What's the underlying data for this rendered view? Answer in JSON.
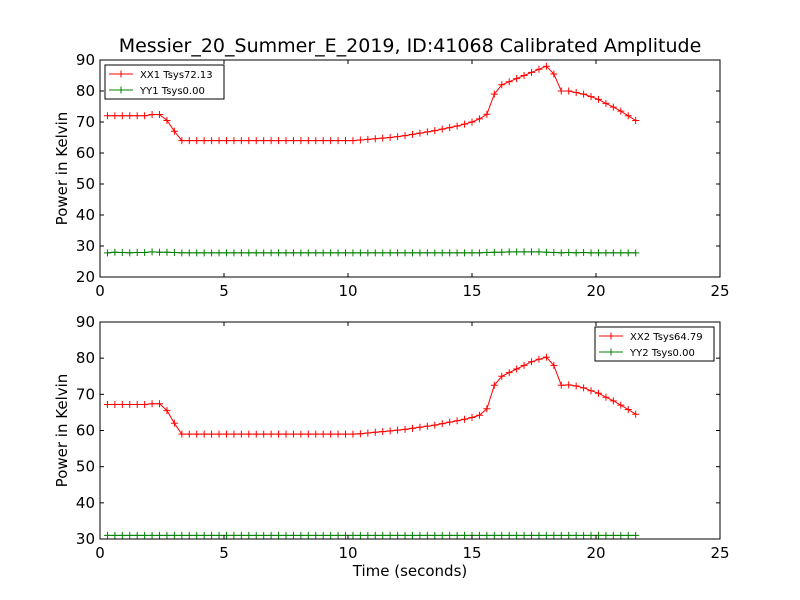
{
  "figure": {
    "title": "Messier_20_Summer_E_2019, ID:41068 Calibrated Amplitude"
  },
  "chart_data": [
    {
      "type": "line",
      "title": "Messier_20_Summer_E_2019, ID:41068 Calibrated Amplitude",
      "xlabel": "",
      "ylabel": "Power in Kelvin",
      "xlim": [
        0,
        25
      ],
      "ylim": [
        20,
        90
      ],
      "xticks": [
        "0",
        "5",
        "10",
        "15",
        "20",
        "25"
      ],
      "yticks": [
        "20",
        "30",
        "40",
        "50",
        "60",
        "70",
        "80",
        "90"
      ],
      "grid": false,
      "legend_position": "top-left",
      "series": [
        {
          "name": "XX1 Tsys72.13",
          "color": "#ff0000",
          "marker": "plus",
          "x": [
            0.3,
            0.6,
            0.9,
            1.2,
            1.5,
            1.8,
            2.1,
            2.4,
            2.7,
            3.0,
            3.3,
            3.6,
            3.9,
            4.2,
            4.5,
            4.8,
            5.1,
            5.4,
            5.7,
            6.0,
            6.3,
            6.6,
            6.9,
            7.2,
            7.5,
            7.8,
            8.1,
            8.4,
            8.7,
            9.0,
            9.3,
            9.6,
            9.9,
            10.2,
            10.5,
            10.8,
            11.1,
            11.4,
            11.7,
            12.0,
            12.3,
            12.6,
            12.9,
            13.2,
            13.5,
            13.8,
            14.1,
            14.4,
            14.7,
            15.0,
            15.3,
            15.6,
            15.9,
            16.2,
            16.5,
            16.8,
            17.1,
            17.4,
            17.7,
            18.0,
            18.3,
            18.6,
            18.9,
            19.2,
            19.5,
            19.8,
            20.1,
            20.4,
            20.7,
            21.0,
            21.3,
            21.6
          ],
          "y": [
            72,
            72,
            72,
            72,
            72,
            72,
            72.4,
            72.4,
            70.5,
            67,
            64,
            64,
            64,
            64,
            64,
            64,
            64,
            64,
            64,
            64,
            64,
            64,
            64,
            64,
            64,
            64,
            64,
            64,
            64,
            64,
            64,
            64,
            64,
            64,
            64.2,
            64.4,
            64.6,
            64.8,
            65,
            65.3,
            65.6,
            66,
            66.4,
            66.8,
            67.2,
            67.7,
            68.2,
            68.7,
            69.3,
            70,
            71,
            72.5,
            79,
            82,
            83,
            84,
            85,
            86,
            87,
            88,
            85.5,
            80,
            80,
            79.5,
            79,
            78.2,
            77.3,
            76,
            74.8,
            73.5,
            72,
            70.5
          ]
        },
        {
          "name": "YY1 Tsys0.00",
          "color": "#008000",
          "marker": "plus",
          "x": [
            0.3,
            0.6,
            0.9,
            1.2,
            1.5,
            1.8,
            2.1,
            2.4,
            2.7,
            3.0,
            3.3,
            3.6,
            3.9,
            4.2,
            4.5,
            4.8,
            5.1,
            5.4,
            5.7,
            6.0,
            6.3,
            6.6,
            6.9,
            7.2,
            7.5,
            7.8,
            8.1,
            8.4,
            8.7,
            9.0,
            9.3,
            9.6,
            9.9,
            10.2,
            10.5,
            10.8,
            11.1,
            11.4,
            11.7,
            12.0,
            12.3,
            12.6,
            12.9,
            13.2,
            13.5,
            13.8,
            14.1,
            14.4,
            14.7,
            15.0,
            15.3,
            15.6,
            15.9,
            16.2,
            16.5,
            16.8,
            17.1,
            17.4,
            17.7,
            18.0,
            18.3,
            18.6,
            18.9,
            19.2,
            19.5,
            19.8,
            20.1,
            20.4,
            20.7,
            21.0,
            21.3,
            21.6
          ],
          "y": [
            27.8,
            28,
            27.9,
            27.8,
            27.9,
            27.9,
            28.1,
            28,
            28,
            27.9,
            27.8,
            27.8,
            27.8,
            27.8,
            27.8,
            27.8,
            27.8,
            27.8,
            27.8,
            27.8,
            27.8,
            27.8,
            27.8,
            27.8,
            27.8,
            27.8,
            27.8,
            27.8,
            27.8,
            27.8,
            27.8,
            27.8,
            27.8,
            27.8,
            27.8,
            27.8,
            27.8,
            27.8,
            27.8,
            27.8,
            27.8,
            27.8,
            27.8,
            27.8,
            27.8,
            27.8,
            27.8,
            27.8,
            27.8,
            27.8,
            27.8,
            27.9,
            28,
            28,
            28.1,
            28.1,
            28.1,
            28.1,
            28.1,
            28,
            27.9,
            27.8,
            27.9,
            27.8,
            27.9,
            27.8,
            27.8,
            27.8,
            27.8,
            27.8,
            27.8,
            27.8
          ]
        }
      ]
    },
    {
      "type": "line",
      "title": "",
      "xlabel": "Time (seconds)",
      "ylabel": "Power in Kelvin",
      "xlim": [
        0,
        25
      ],
      "ylim": [
        30,
        90
      ],
      "xticks": [
        "0",
        "5",
        "10",
        "15",
        "20",
        "25"
      ],
      "yticks": [
        "30",
        "40",
        "50",
        "60",
        "70",
        "80",
        "90"
      ],
      "grid": false,
      "legend_position": "top-right",
      "series": [
        {
          "name": "XX2 Tsys64.79",
          "color": "#ff0000",
          "marker": "plus",
          "x": [
            0.3,
            0.6,
            0.9,
            1.2,
            1.5,
            1.8,
            2.1,
            2.4,
            2.7,
            3.0,
            3.3,
            3.6,
            3.9,
            4.2,
            4.5,
            4.8,
            5.1,
            5.4,
            5.7,
            6.0,
            6.3,
            6.6,
            6.9,
            7.2,
            7.5,
            7.8,
            8.1,
            8.4,
            8.7,
            9.0,
            9.3,
            9.6,
            9.9,
            10.2,
            10.5,
            10.8,
            11.1,
            11.4,
            11.7,
            12.0,
            12.3,
            12.6,
            12.9,
            13.2,
            13.5,
            13.8,
            14.1,
            14.4,
            14.7,
            15.0,
            15.3,
            15.6,
            15.9,
            16.2,
            16.5,
            16.8,
            17.1,
            17.4,
            17.7,
            18.0,
            18.3,
            18.6,
            18.9,
            19.2,
            19.5,
            19.8,
            20.1,
            20.4,
            20.7,
            21.0,
            21.3,
            21.6
          ],
          "y": [
            67.2,
            67.2,
            67.2,
            67.2,
            67.2,
            67.2,
            67.4,
            67.4,
            65.5,
            62,
            59,
            59,
            59,
            59,
            59,
            59,
            59,
            59,
            59,
            59,
            59,
            59,
            59,
            59,
            59,
            59,
            59,
            59,
            59,
            59,
            59,
            59,
            59,
            59,
            59.1,
            59.3,
            59.5,
            59.7,
            59.9,
            60.1,
            60.3,
            60.6,
            60.9,
            61.2,
            61.5,
            61.9,
            62.3,
            62.7,
            63.1,
            63.6,
            64.2,
            66,
            72.5,
            75,
            76,
            77,
            78,
            79,
            79.7,
            80.3,
            78,
            72.5,
            72.6,
            72.3,
            71.8,
            71,
            70.3,
            69.2,
            68.2,
            67,
            65.8,
            64.5
          ]
        },
        {
          "name": "YY2 Tsys0.00",
          "color": "#008000",
          "marker": "plus",
          "x": [
            0.3,
            0.6,
            0.9,
            1.2,
            1.5,
            1.8,
            2.1,
            2.4,
            2.7,
            3.0,
            3.3,
            3.6,
            3.9,
            4.2,
            4.5,
            4.8,
            5.1,
            5.4,
            5.7,
            6.0,
            6.3,
            6.6,
            6.9,
            7.2,
            7.5,
            7.8,
            8.1,
            8.4,
            8.7,
            9.0,
            9.3,
            9.6,
            9.9,
            10.2,
            10.5,
            10.8,
            11.1,
            11.4,
            11.7,
            12.0,
            12.3,
            12.6,
            12.9,
            13.2,
            13.5,
            13.8,
            14.1,
            14.4,
            14.7,
            15.0,
            15.3,
            15.6,
            15.9,
            16.2,
            16.5,
            16.8,
            17.1,
            17.4,
            17.7,
            18.0,
            18.3,
            18.6,
            18.9,
            19.2,
            19.5,
            19.8,
            20.1,
            20.4,
            20.7,
            21.0,
            21.3,
            21.6
          ],
          "y": [
            31,
            31,
            31,
            31,
            31,
            31,
            31,
            31,
            31,
            31,
            31,
            31,
            31,
            31,
            31,
            31,
            31,
            31,
            31,
            31,
            31,
            31,
            31,
            31,
            31,
            31,
            31,
            31,
            31,
            31,
            31,
            31,
            31,
            31,
            31,
            31,
            31,
            31,
            31,
            31,
            31,
            31,
            31,
            31,
            31,
            31,
            31,
            31,
            31,
            31,
            31,
            31,
            31,
            31,
            31,
            31,
            31,
            31,
            31,
            31,
            31,
            31,
            31,
            31,
            31,
            31,
            31,
            31,
            31,
            31,
            31,
            31
          ]
        }
      ]
    }
  ]
}
